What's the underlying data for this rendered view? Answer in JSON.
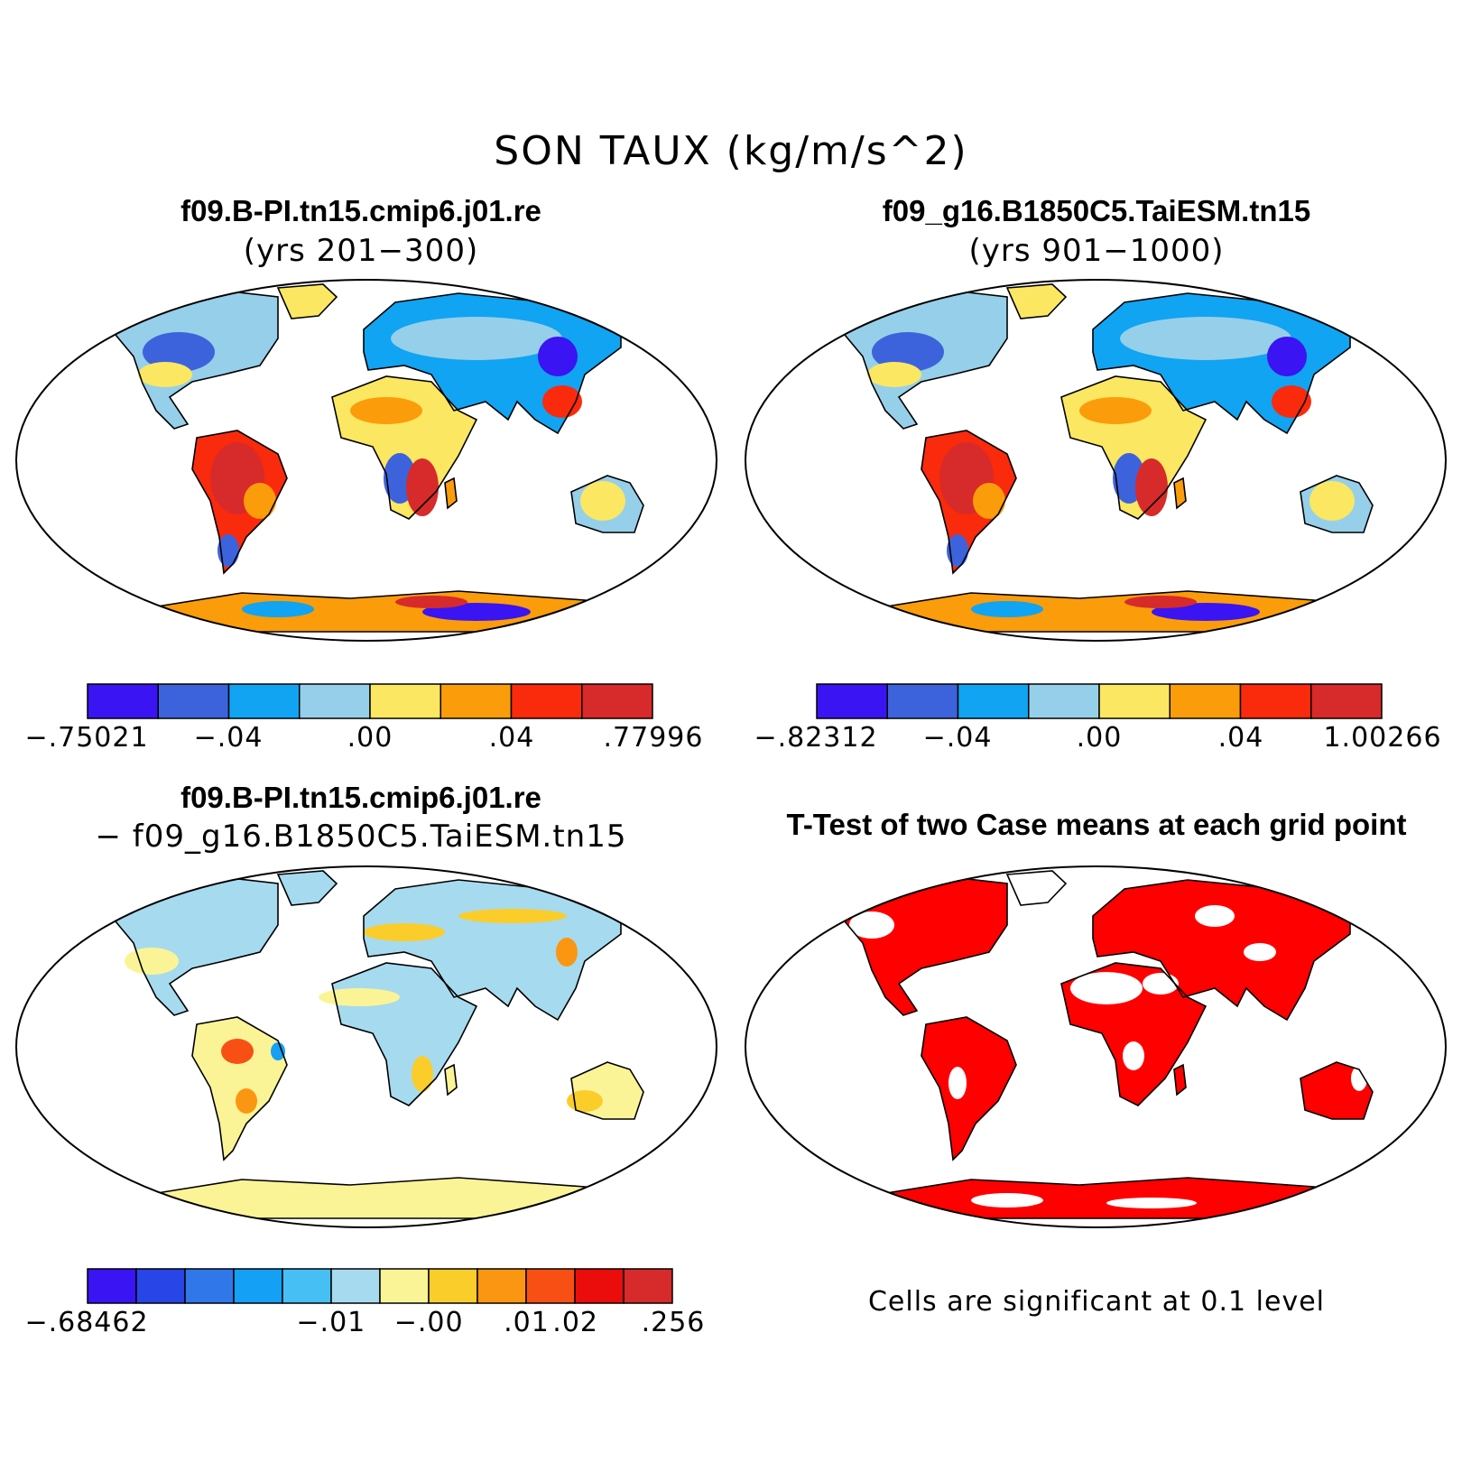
{
  "title": "SON TAUX (kg/m/s^2)",
  "panels": {
    "top_left": {
      "title": "f09.B-PI.tn15.cmip6.j01.re",
      "subtitle": "(yrs 201−300)",
      "colorbar": {
        "colors": [
          "#3a14f2",
          "#3d63dc",
          "#10a4f2",
          "#96cfe9",
          "#fbe762",
          "#fb9c0a",
          "#fa2a0c",
          "#d72a2a"
        ],
        "tick_labels": [
          "−.75021",
          "−.04",
          ".00",
          ".04",
          ".77996"
        ]
      }
    },
    "top_right": {
      "title": "f09_g16.B1850C5.TaiESM.tn15",
      "subtitle": "(yrs 901−1000)",
      "colorbar": {
        "colors": [
          "#3a14f2",
          "#3d63dc",
          "#10a4f2",
          "#96cfe9",
          "#fbe762",
          "#fb9c0a",
          "#fa2a0c",
          "#d72a2a"
        ],
        "tick_labels": [
          "−.82312",
          "−.04",
          ".00",
          ".04",
          "1.00266"
        ]
      }
    },
    "bottom_left": {
      "title": "f09.B-PI.tn15.cmip6.j01.re",
      "subtitle": "− f09_g16.B1850C5.TaiESM.tn15",
      "colorbar": {
        "colors": [
          "#3a14f2",
          "#2845e8",
          "#3077ea",
          "#14a0f4",
          "#45bff4",
          "#a6daef",
          "#fbf496",
          "#fbcd2a",
          "#fb9612",
          "#f85014",
          "#eb0c0c",
          "#d72a2a"
        ],
        "tick_labels": [
          "−.68462",
          "−.01",
          "−.00",
          ".01",
          ".02",
          ".256"
        ]
      }
    },
    "bottom_right": {
      "title": "T-Test of two Case means at each grid point",
      "note": "Cells are significant at 0.1 level",
      "significance_color": "#ff0000"
    }
  }
}
